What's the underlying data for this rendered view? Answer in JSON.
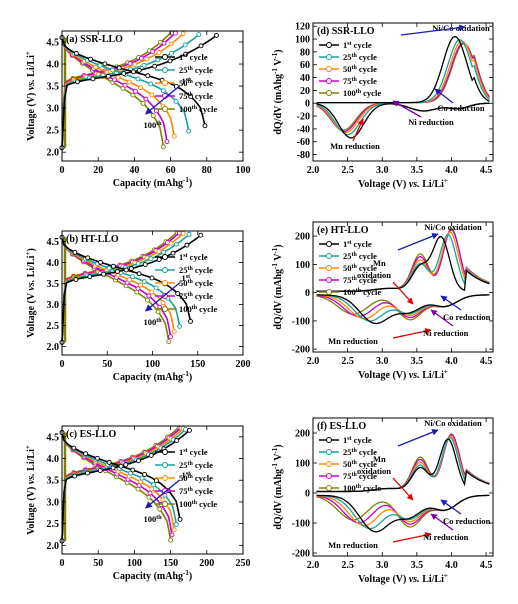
{
  "chart_data": [
    {
      "panel": "(a) SSR-LLO",
      "type": "line",
      "xlabel": "Capacity (mAhg⁻¹)",
      "ylabel": "Voltage (V) vs. Li/Li⁺",
      "xlim": [
        0,
        100
      ],
      "ylim": [
        1.8,
        4.75
      ],
      "xticks": [
        0,
        20,
        40,
        60,
        80,
        100
      ],
      "yticks": [
        2.0,
        2.5,
        3.0,
        3.5,
        4.0,
        4.5
      ],
      "legend": [
        "1st cycle",
        "25th cycle",
        "50th cycle",
        "75th cycle",
        "100th cycle"
      ],
      "discharge_capacity": [
        79,
        70,
        62,
        58,
        56
      ],
      "annotations": [
        {
          "text": "1st"
        },
        {
          "text": "100th"
        }
      ]
    },
    {
      "panel": "(d) SSR-LLO",
      "type": "line",
      "xlabel": "Voltage (V) vs. Li/Li⁺",
      "ylabel": "dQ/dV (mAhg⁻¹ V⁻¹)",
      "xlim": [
        2.0,
        4.6
      ],
      "ylim": [
        -90,
        125
      ],
      "xticks": [
        2.0,
        2.5,
        3.0,
        3.5,
        4.0,
        4.5
      ],
      "yticks": [
        -80,
        -60,
        -40,
        -20,
        0,
        20,
        40,
        60,
        80,
        100,
        120
      ],
      "legend": [
        "1st cycle",
        "25th cycle",
        "50th cycle",
        "75th cycle",
        "100th cycle"
      ],
      "peaks": {
        "oxidation": [
          [
            4.05,
            103
          ],
          [
            4.12,
            98
          ],
          [
            4.15,
            96
          ],
          [
            4.17,
            93
          ],
          [
            4.18,
            92
          ]
        ],
        "mn_reduction": [
          [
            2.55,
            -54
          ],
          [
            2.5,
            -49
          ],
          [
            2.47,
            -46
          ],
          [
            2.45,
            -44
          ],
          [
            2.44,
            -42
          ]
        ]
      },
      "annotations": [
        {
          "text": "Ni/Co oxidation"
        },
        {
          "text": "Mn reduction"
        },
        {
          "text": "Ni reduction"
        },
        {
          "text": "Co reduction"
        }
      ]
    },
    {
      "panel": "(b) HT-LLO",
      "type": "line",
      "xlabel": "Capacity (mAhg⁻¹)",
      "ylabel": "Voltage (V vs. Li/Li⁺)",
      "xlim": [
        0,
        200
      ],
      "ylim": [
        1.8,
        4.75
      ],
      "xticks": [
        0,
        50,
        100,
        150,
        200
      ],
      "yticks": [
        2.0,
        2.5,
        3.0,
        3.5,
        4.0,
        4.5
      ],
      "legend": [
        "1st cycle",
        "25th cycle",
        "50th cycle",
        "75th cycle",
        "100th cycle"
      ],
      "discharge_capacity": [
        142,
        130,
        124,
        120,
        118
      ],
      "annotations": [
        {
          "text": "1st"
        },
        {
          "text": "100th"
        }
      ]
    },
    {
      "panel": "(e) HT-LLO",
      "type": "line",
      "xlabel": "Voltage (V) vs. Li/Li⁺",
      "ylabel": "dQ/dV (mAhg⁻¹ V⁻¹)",
      "xlim": [
        2.0,
        4.6
      ],
      "ylim": [
        -210,
        250
      ],
      "xticks": [
        2.0,
        2.5,
        3.0,
        3.5,
        4.0,
        4.5
      ],
      "yticks": [
        -200,
        -100,
        0,
        100,
        200
      ],
      "legend": [
        "1st cycle",
        "25th cycle",
        "50th cycle",
        "75th cycle",
        "100th cycle"
      ],
      "peaks": {
        "oxidation": [
          [
            3.85,
            190
          ],
          [
            3.95,
            200
          ],
          [
            3.98,
            210
          ],
          [
            4.0,
            218
          ],
          [
            4.0,
            222
          ]
        ]
      },
      "annotations": [
        {
          "text": "Ni/Co oxidation"
        },
        {
          "text": "Mn oxidation"
        },
        {
          "text": "Mn reduction"
        },
        {
          "text": "Ni reduction"
        },
        {
          "text": "Co reduction"
        }
      ]
    },
    {
      "panel": "(c) ES-LLO",
      "type": "line",
      "xlabel": "Capacity (mAhg⁻¹)",
      "ylabel": "Voltage (V) vs. Li/Li⁺",
      "xlim": [
        0,
        250
      ],
      "ylim": [
        1.8,
        4.75
      ],
      "xticks": [
        0,
        50,
        100,
        150,
        200,
        250
      ],
      "yticks": [
        2.0,
        2.5,
        3.0,
        3.5,
        4.0,
        4.5
      ],
      "legend": [
        "1st cycle",
        "25th cycle",
        "50th cycle",
        "75th cycle",
        "100th cycle"
      ],
      "discharge_capacity": [
        163,
        158,
        155,
        152,
        150
      ],
      "annotations": [
        {
          "text": "1st"
        },
        {
          "text": "100th"
        }
      ]
    },
    {
      "panel": "(f) ES-LLO",
      "type": "line",
      "xlabel": "Voltage (V) vs. Li/Li⁺",
      "ylabel": "dQ/dV (mAhg⁻¹ V⁻¹)",
      "xlim": [
        2.0,
        4.6
      ],
      "ylim": [
        -210,
        250
      ],
      "xticks": [
        2.0,
        2.5,
        3.0,
        3.5,
        4.0,
        4.5
      ],
      "yticks": [
        -200,
        -100,
        0,
        100,
        200
      ],
      "legend": [
        "1st cycle",
        "25th cycle",
        "50th cycle",
        "75th cycle",
        "100th cycle"
      ],
      "peaks": {
        "oxidation": [
          [
            3.95,
            175
          ],
          [
            3.98,
            180
          ],
          [
            3.99,
            185
          ],
          [
            4.0,
            190
          ],
          [
            4.0,
            192
          ]
        ]
      },
      "annotations": [
        {
          "text": "Ni/Co oxidation"
        },
        {
          "text": "Mn oxidation"
        },
        {
          "text": "Mn reduction"
        },
        {
          "text": "Ni reduction"
        },
        {
          "text": "Co reduction"
        }
      ]
    }
  ],
  "series_colors": [
    "#000000",
    "#17a2a2",
    "#ff8a00",
    "#c800c8",
    "#808000"
  ],
  "arrow_colors": {
    "ox": "#1c1cb4",
    "mn": "#e00000",
    "ni": "#7a00aa",
    "co": "#1c1cb4"
  }
}
